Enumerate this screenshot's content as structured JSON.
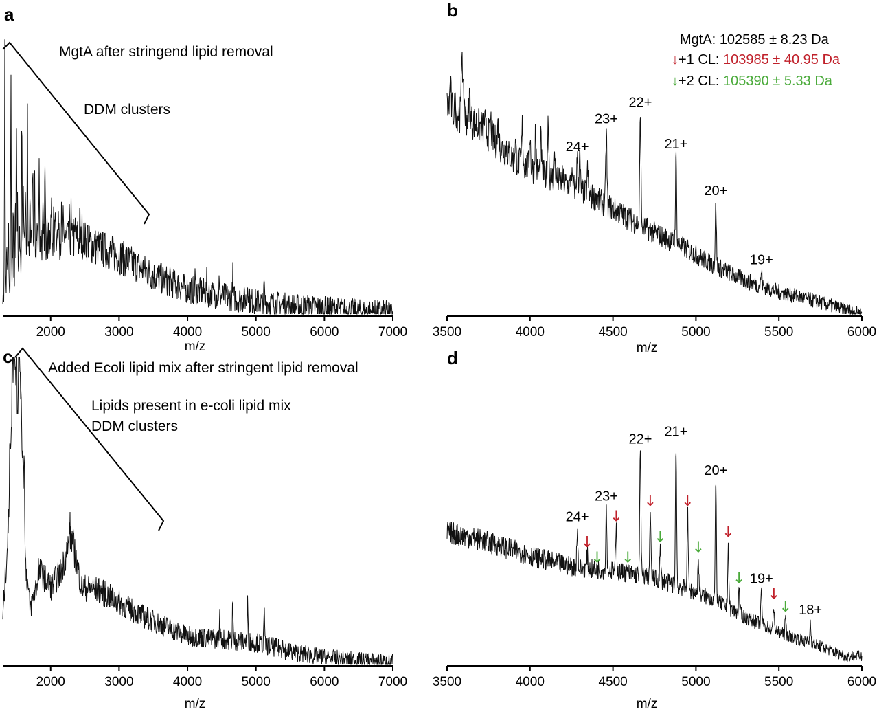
{
  "colors": {
    "red_arrow": "#c0202a",
    "green_arrow": "#4aaa3a",
    "trace": "#111111"
  },
  "chart_data": [
    {
      "panel": "a",
      "type": "line",
      "xlabel": "m/z",
      "x_ticks": [
        "2000",
        "3000",
        "4000",
        "5000",
        "6000",
        "7000"
      ],
      "xlim": [
        1300,
        7000
      ],
      "annotations": [
        "MgtA after stringend lipid removal",
        "DDM clusters"
      ],
      "envelope": [
        [
          1300,
          0.08
        ],
        [
          1600,
          0.22
        ],
        [
          2000,
          0.27
        ],
        [
          2500,
          0.26
        ],
        [
          3000,
          0.21
        ],
        [
          3500,
          0.14
        ],
        [
          4000,
          0.09
        ],
        [
          4500,
          0.065
        ],
        [
          5000,
          0.045
        ],
        [
          5500,
          0.03
        ],
        [
          6000,
          0.02
        ],
        [
          6500,
          0.01
        ],
        [
          7000,
          0.005
        ]
      ],
      "peaks": [
        [
          1330,
          0.98
        ],
        [
          1420,
          0.78
        ],
        [
          1500,
          0.72
        ],
        [
          1580,
          0.55
        ],
        [
          1660,
          0.72
        ],
        [
          1740,
          0.48
        ],
        [
          1830,
          0.42
        ],
        [
          1920,
          0.38
        ],
        [
          2010,
          0.3
        ],
        [
          2100,
          0.25
        ],
        [
          2200,
          0.2
        ],
        [
          2300,
          0.15
        ],
        [
          4110,
          0.13
        ],
        [
          4280,
          0.12
        ],
        [
          4460,
          0.12
        ],
        [
          4660,
          0.15
        ],
        [
          4880,
          0.14
        ],
        [
          5120,
          0.11
        ]
      ]
    },
    {
      "panel": "b",
      "type": "line",
      "xlabel": "m/z",
      "x_ticks": [
        "3500",
        "4000",
        "4500",
        "5000",
        "5500",
        "6000"
      ],
      "xlim": [
        3500,
        6000
      ],
      "legend": [
        {
          "label": "MgtA:",
          "value": "102585 ± 8.23 Da",
          "arrow": ""
        },
        {
          "label": "+1 CL:",
          "value": "103985 ± 40.95 Da",
          "arrow": "red"
        },
        {
          "label": "+2 CL:",
          "value": "105390 ± 5.33 Da",
          "arrow": "green"
        }
      ],
      "envelope": [
        [
          3500,
          0.75
        ],
        [
          3700,
          0.68
        ],
        [
          3900,
          0.56
        ],
        [
          4100,
          0.5
        ],
        [
          4300,
          0.45
        ],
        [
          4500,
          0.38
        ],
        [
          4700,
          0.31
        ],
        [
          4900,
          0.25
        ],
        [
          5100,
          0.18
        ],
        [
          5300,
          0.12
        ],
        [
          5500,
          0.08
        ],
        [
          5700,
          0.05
        ],
        [
          6000,
          0.0
        ]
      ],
      "peaks": [
        {
          "x": 3590,
          "y": 0.98,
          "label": ""
        },
        {
          "x": 4110,
          "y": 0.69,
          "label": ""
        },
        {
          "x": 4285,
          "y": 0.56,
          "label": "24+"
        },
        {
          "x": 4460,
          "y": 0.66,
          "label": "23+"
        },
        {
          "x": 4665,
          "y": 0.72,
          "label": "22+"
        },
        {
          "x": 4880,
          "y": 0.57,
          "label": "21+"
        },
        {
          "x": 5120,
          "y": 0.4,
          "label": "20+"
        },
        {
          "x": 5395,
          "y": 0.15,
          "label": "19+"
        }
      ]
    },
    {
      "panel": "c",
      "type": "line",
      "xlabel": "m/z",
      "x_ticks": [
        "2000",
        "3000",
        "4000",
        "5000",
        "6000",
        "7000"
      ],
      "xlim": [
        1300,
        7000
      ],
      "annotations": [
        "Added Ecoli lipid mix after stringent lipid removal",
        "Lipids present in e-coli lipid mix",
        "DDM clusters"
      ],
      "envelope": [
        [
          1300,
          0.15
        ],
        [
          1400,
          0.5
        ],
        [
          1500,
          0.85
        ],
        [
          1600,
          0.4
        ],
        [
          1700,
          0.18
        ],
        [
          1850,
          0.3
        ],
        [
          2000,
          0.25
        ],
        [
          2150,
          0.3
        ],
        [
          2300,
          0.42
        ],
        [
          2450,
          0.25
        ],
        [
          2700,
          0.24
        ],
        [
          3000,
          0.2
        ],
        [
          3300,
          0.16
        ],
        [
          3700,
          0.12
        ],
        [
          4000,
          0.09
        ],
        [
          4500,
          0.08
        ],
        [
          5000,
          0.07
        ],
        [
          5500,
          0.04
        ],
        [
          6000,
          0.02
        ],
        [
          6500,
          0.01
        ],
        [
          7000,
          0.005
        ]
      ],
      "peaks": [
        [
          1500,
          0.98
        ],
        [
          1460,
          0.9
        ],
        [
          1540,
          0.75
        ],
        [
          1820,
          0.32
        ],
        [
          2280,
          0.45
        ],
        [
          2600,
          0.26
        ],
        [
          2850,
          0.22
        ],
        [
          4470,
          0.16
        ],
        [
          4660,
          0.21
        ],
        [
          4880,
          0.21
        ],
        [
          5120,
          0.19
        ],
        [
          5390,
          0.1
        ]
      ]
    },
    {
      "panel": "d",
      "type": "line",
      "xlabel": "m/z",
      "x_ticks": [
        "3500",
        "4000",
        "4500",
        "5000",
        "5500",
        "6000"
      ],
      "xlim": [
        3500,
        6000
      ],
      "envelope": [
        [
          3500,
          0.51
        ],
        [
          3700,
          0.48
        ],
        [
          3900,
          0.44
        ],
        [
          4100,
          0.4
        ],
        [
          4300,
          0.37
        ],
        [
          4500,
          0.36
        ],
        [
          4700,
          0.34
        ],
        [
          4900,
          0.3
        ],
        [
          5100,
          0.25
        ],
        [
          5300,
          0.18
        ],
        [
          5500,
          0.12
        ],
        [
          5700,
          0.08
        ],
        [
          5900,
          0.03
        ],
        [
          5970,
          0.03
        ]
      ],
      "peaks": [
        {
          "x": 4285,
          "y": 0.52,
          "label": "24+"
        },
        {
          "x": 4460,
          "y": 0.6,
          "label": "23+"
        },
        {
          "x": 4665,
          "y": 0.82,
          "label": "22+"
        },
        {
          "x": 4880,
          "y": 0.85,
          "label": "21+"
        },
        {
          "x": 5120,
          "y": 0.7,
          "label": "20+"
        },
        {
          "x": 5395,
          "y": 0.28,
          "label": "19+"
        },
        {
          "x": 5690,
          "y": 0.16,
          "label": "18+"
        }
      ],
      "adduct_peaks": [
        {
          "x": 4345,
          "y": 0.42,
          "color": "red"
        },
        {
          "x": 4520,
          "y": 0.52,
          "color": "red"
        },
        {
          "x": 4725,
          "y": 0.58,
          "color": "red"
        },
        {
          "x": 4950,
          "y": 0.58,
          "color": "red"
        },
        {
          "x": 5195,
          "y": 0.46,
          "color": "red"
        },
        {
          "x": 5470,
          "y": 0.22,
          "color": "red"
        },
        {
          "x": 4405,
          "y": 0.36,
          "color": "green"
        },
        {
          "x": 4590,
          "y": 0.36,
          "color": "green"
        },
        {
          "x": 4785,
          "y": 0.44,
          "color": "green"
        },
        {
          "x": 5015,
          "y": 0.4,
          "color": "green"
        },
        {
          "x": 5260,
          "y": 0.28,
          "color": "green"
        },
        {
          "x": 5540,
          "y": 0.17,
          "color": "green"
        }
      ]
    }
  ]
}
